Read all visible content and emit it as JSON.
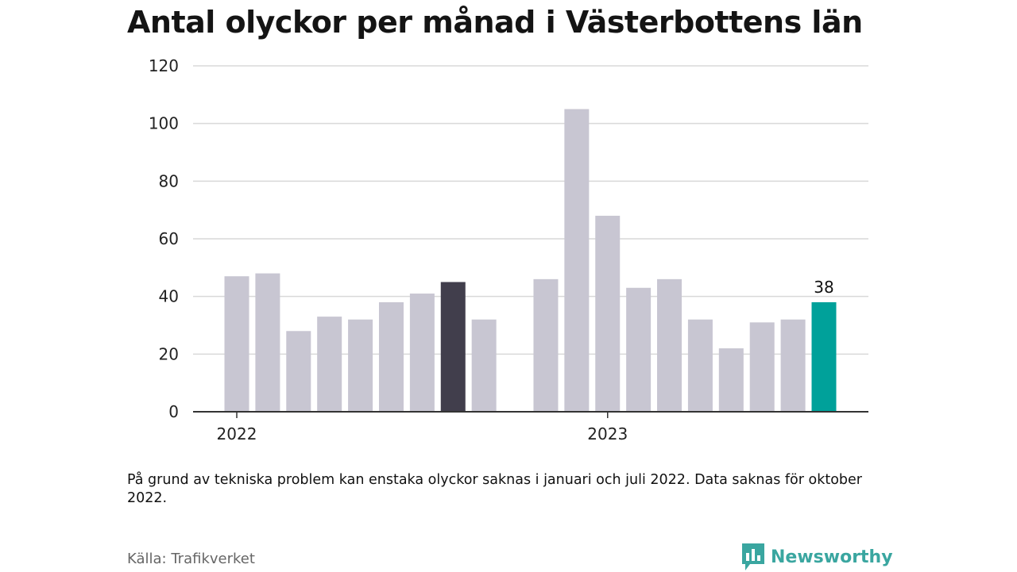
{
  "chart_data": {
    "type": "bar",
    "title": "Antal olyckor per månad i Västerbottens län",
    "xlabel": "",
    "ylabel": "",
    "ylim": [
      0,
      120
    ],
    "yticks": [
      0,
      20,
      40,
      60,
      80,
      100,
      120
    ],
    "year_labels": [
      {
        "label": "2022",
        "at_index": 0
      },
      {
        "label": "2023",
        "at_index": 12
      }
    ],
    "bars": [
      {
        "month": "2022-01",
        "value": 47
      },
      {
        "month": "2022-02",
        "value": 48
      },
      {
        "month": "2022-03",
        "value": 28
      },
      {
        "month": "2022-04",
        "value": 33
      },
      {
        "month": "2022-05",
        "value": 32
      },
      {
        "month": "2022-06",
        "value": 38
      },
      {
        "month": "2022-07",
        "value": 41
      },
      {
        "month": "2022-08",
        "value": 45,
        "highlight": "dark"
      },
      {
        "month": "2022-09",
        "value": 32
      },
      {
        "month": "2022-10",
        "value": null
      },
      {
        "month": "2022-11",
        "value": 46
      },
      {
        "month": "2022-12",
        "value": 105
      },
      {
        "month": "2023-01",
        "value": 68
      },
      {
        "month": "2023-02",
        "value": 43
      },
      {
        "month": "2023-03",
        "value": 46
      },
      {
        "month": "2023-04",
        "value": 32
      },
      {
        "month": "2023-05",
        "value": 22
      },
      {
        "month": "2023-06",
        "value": 31
      },
      {
        "month": "2023-07",
        "value": 32
      },
      {
        "month": "2023-08",
        "value": 38,
        "highlight": "accent",
        "label": "38"
      }
    ],
    "grid": true,
    "colors": {
      "default": "#c8c6d2",
      "dark": "#413e4c",
      "accent": "#00a19a",
      "grid": "#d9d9d9",
      "axis": "#333333"
    }
  },
  "note": "På grund av tekniska problem kan enstaka olyckor saknas i januari och juli 2022. Data saknas för oktober 2022.",
  "source": "Källa: Trafikverket",
  "logo": {
    "text": "Newsworthy",
    "icon": "bar-chart-speech-icon",
    "color": "#3aa6a0"
  }
}
